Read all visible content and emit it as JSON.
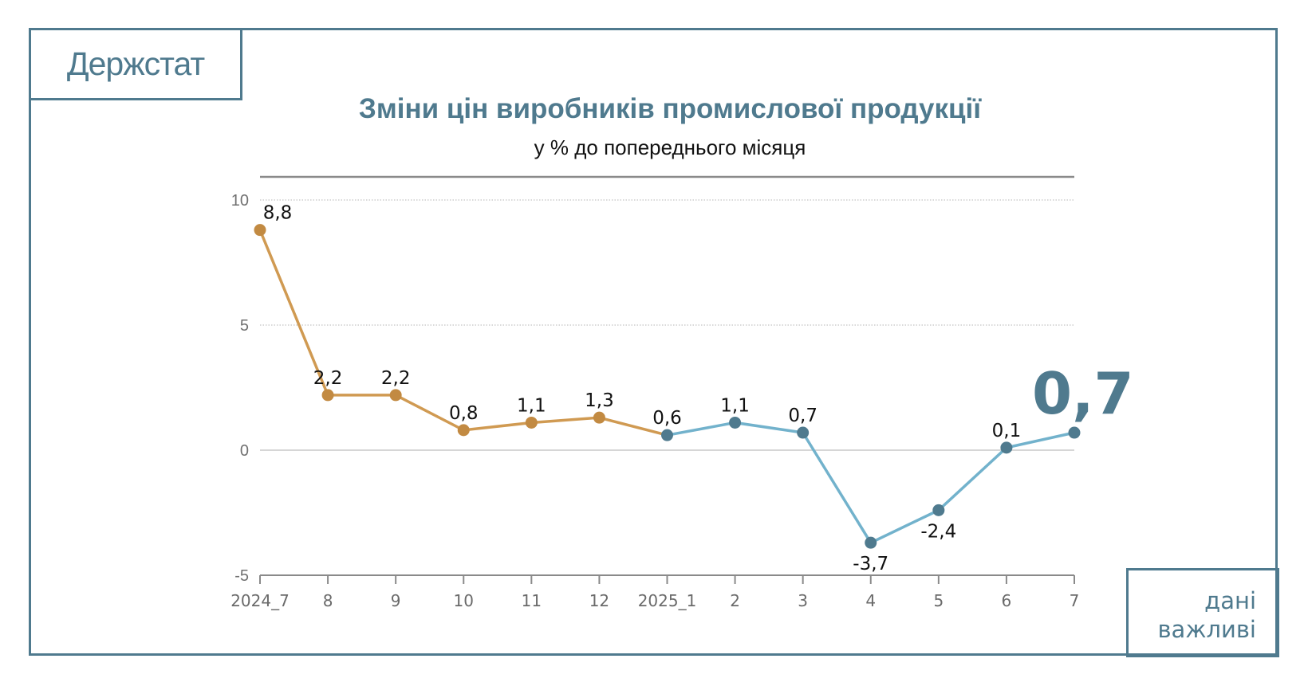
{
  "logo_text": "Держстат",
  "note": {
    "line1": "дані",
    "line2": "важливі"
  },
  "highlight_value": "0,7",
  "colors": {
    "frame": "#4f7a8e",
    "series_2024_line": "#d09a52",
    "series_2024_dot": "#c28a42",
    "series_2025_line": "#72b2cc",
    "series_2025_dot": "#4f7a8e"
  },
  "chart_data": {
    "type": "line",
    "title": "Зміни цін виробників промислової продукції",
    "subtitle": "у % до попереднього місяця",
    "xlabel": "",
    "ylabel": "",
    "ylim": [
      -5,
      10
    ],
    "yticks": [
      -5,
      0,
      5,
      10
    ],
    "ytick_labels": [
      "-5",
      "0",
      "5",
      "10"
    ],
    "grid": true,
    "categories": [
      "2024_7",
      "8",
      "9",
      "10",
      "11",
      "12",
      "2025_1",
      "2",
      "3",
      "4",
      "5",
      "6",
      "7"
    ],
    "values": [
      8.8,
      2.2,
      2.2,
      0.8,
      1.1,
      1.3,
      0.6,
      1.1,
      0.7,
      -3.7,
      -2.4,
      0.1,
      0.7
    ],
    "labels": [
      "8,8",
      "2,2",
      "2,2",
      "0,8",
      "1,1",
      "1,3",
      "0,6",
      "1,1",
      "0,7",
      "-3,7",
      "-2,4",
      "0,1",
      ""
    ],
    "series": [
      {
        "name": "2024",
        "from": 0,
        "to": 6
      },
      {
        "name": "2025",
        "from": 6,
        "to": 12
      }
    ]
  }
}
